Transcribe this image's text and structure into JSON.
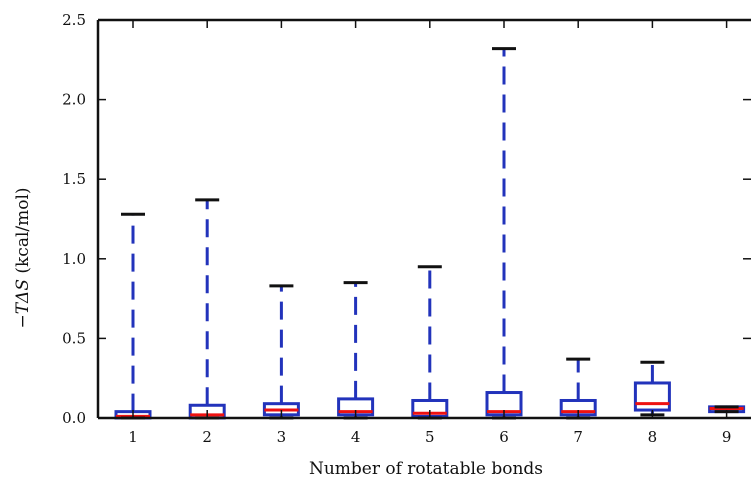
{
  "chart_data": {
    "type": "box",
    "xlabel": "Number of rotatable bonds",
    "ylabel_prefix": "−TΔS",
    "ylabel_unit": " (kcal/mol)",
    "categories": [
      "1",
      "2",
      "3",
      "4",
      "5",
      "6",
      "7",
      "8",
      "9"
    ],
    "yticks": [
      "0.0",
      "0.5",
      "1.0",
      "1.5",
      "2.0",
      "2.5"
    ],
    "ylim": [
      0,
      2.5
    ],
    "grid": false,
    "boxes": [
      {
        "category": "1",
        "whisker_low": 0.0,
        "q1": 0.0,
        "median": 0.01,
        "q3": 0.04,
        "whisker_high": 1.28
      },
      {
        "category": "2",
        "whisker_low": 0.0,
        "q1": 0.0,
        "median": 0.02,
        "q3": 0.08,
        "whisker_high": 1.37
      },
      {
        "category": "3",
        "whisker_low": 0.0,
        "q1": 0.02,
        "median": 0.05,
        "q3": 0.09,
        "whisker_high": 0.83
      },
      {
        "category": "4",
        "whisker_low": 0.0,
        "q1": 0.02,
        "median": 0.04,
        "q3": 0.12,
        "whisker_high": 0.85
      },
      {
        "category": "5",
        "whisker_low": 0.0,
        "q1": 0.01,
        "median": 0.03,
        "q3": 0.11,
        "whisker_high": 0.95
      },
      {
        "category": "6",
        "whisker_low": 0.0,
        "q1": 0.02,
        "median": 0.04,
        "q3": 0.16,
        "whisker_high": 2.32
      },
      {
        "category": "7",
        "whisker_low": 0.0,
        "q1": 0.02,
        "median": 0.04,
        "q3": 0.11,
        "whisker_high": 0.37
      },
      {
        "category": "8",
        "whisker_low": 0.02,
        "q1": 0.05,
        "median": 0.09,
        "q3": 0.22,
        "whisker_high": 0.35
      },
      {
        "category": "9",
        "whisker_low": 0.04,
        "q1": 0.04,
        "median": 0.06,
        "q3": 0.07,
        "whisker_high": 0.07
      }
    ],
    "colors": {
      "box": "#2233bb",
      "median": "#ee1111",
      "cap": "#111111",
      "axis": "#111111"
    }
  }
}
